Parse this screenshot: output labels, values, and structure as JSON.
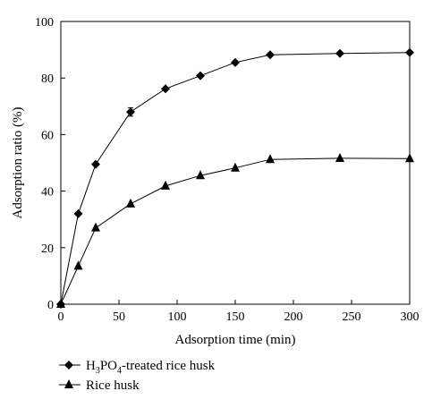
{
  "chart_data": {
    "type": "line",
    "xlabel": "Adsorption time (min)",
    "ylabel": "Adsorption ratio (%)",
    "xlim": [
      0,
      300
    ],
    "ylim": [
      0,
      100
    ],
    "x_ticks": [
      0,
      50,
      100,
      150,
      200,
      250,
      300
    ],
    "y_ticks": [
      0,
      20,
      40,
      60,
      80,
      100
    ],
    "x_tick_labels": [
      "0",
      "50",
      "100",
      "150",
      "200",
      "250",
      "300"
    ],
    "y_tick_labels": [
      "0",
      "20",
      "40",
      "60",
      "80",
      "100"
    ],
    "grid": false,
    "legend_position": "bottom-left",
    "series": [
      {
        "name": "H3PO4-treated rice husk",
        "name_parts": {
          "pre": "H",
          "sub1": "3",
          "mid": "PO",
          "sub2": "4",
          "post": "-treated rice husk"
        },
        "marker": "diamond",
        "color": "#000000",
        "x": [
          0,
          15,
          30,
          60,
          90,
          120,
          150,
          180,
          240,
          300
        ],
        "y": [
          0,
          32,
          49.5,
          68,
          76.2,
          80.8,
          85.5,
          88.2,
          88.7,
          89
        ],
        "error": [
          0,
          0,
          0,
          1.5,
          0,
          0,
          0,
          0,
          0,
          0
        ]
      },
      {
        "name": "Rice husk",
        "marker": "triangle",
        "color": "#000000",
        "x": [
          0,
          15,
          30,
          60,
          90,
          120,
          150,
          180,
          240,
          300
        ],
        "y": [
          0,
          13.5,
          27,
          35.5,
          41.8,
          45.5,
          48.2,
          51.2,
          51.6,
          51.5
        ],
        "error": [
          0,
          0,
          0,
          0,
          0,
          0,
          0,
          0,
          0,
          0
        ]
      }
    ]
  }
}
